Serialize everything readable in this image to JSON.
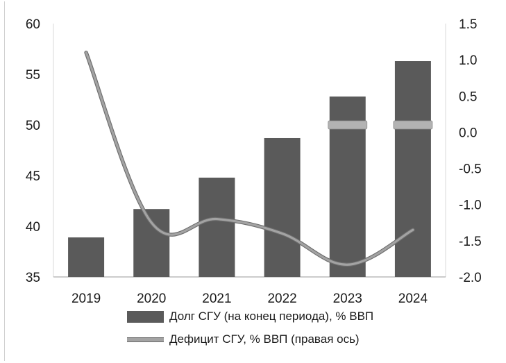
{
  "chart_data": {
    "type": "bar+line",
    "categories": [
      "2019",
      "2020",
      "2021",
      "2022",
      "2023",
      "2024"
    ],
    "series": [
      {
        "name": "Долг СГУ (на конец периода), % ВВП",
        "type": "bar",
        "axis": "left",
        "color": "#5a5a5a",
        "values": [
          38.9,
          41.7,
          44.8,
          48.7,
          52.8,
          56.3
        ]
      },
      {
        "name": "Дефицит СГУ, % ВВП (правая ось)",
        "type": "line",
        "axis": "right",
        "color": "#a3a3a3",
        "values": [
          1.1,
          -1.25,
          -1.2,
          -1.4,
          -1.83,
          -1.35
        ]
      }
    ],
    "target_markers": {
      "axis": "right",
      "color": "#b3b3b3",
      "points": [
        {
          "category": "2023",
          "value": 0.1
        },
        {
          "category": "2024",
          "value": 0.1
        }
      ]
    },
    "y_left": {
      "min": 35,
      "max": 60,
      "ticks": [
        "35",
        "40",
        "45",
        "50",
        "55",
        "60"
      ]
    },
    "y_right": {
      "min": -2.0,
      "max": 1.5,
      "ticks": [
        "-2.0",
        "-1.5",
        "-1.0",
        "-0.5",
        "0.0",
        "0.5",
        "1.0",
        "1.5"
      ]
    },
    "legend_position": "bottom",
    "grid": false
  },
  "legend": {
    "bar_label": "Долг СГУ (на конец периода), % ВВП",
    "line_label": "Дефицит СГУ, % ВВП (правая ось)"
  }
}
